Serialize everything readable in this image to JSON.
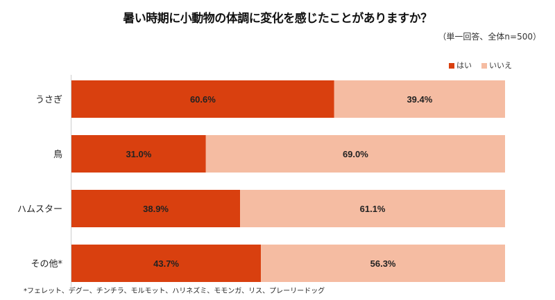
{
  "chart_data": {
    "type": "bar",
    "stacked": true,
    "orientation": "horizontal",
    "title": "暑い時期に小動物の体調に変化を感じたことがありますか？",
    "subtitle": "（単一回答、全体n=500）",
    "categories": [
      "うさぎ",
      "鳥",
      "ハムスター",
      "その他*"
    ],
    "series": [
      {
        "name": "はい",
        "color": "#d9400f",
        "values": [
          60.6,
          31.0,
          38.9,
          43.7
        ],
        "labels": [
          "60.6%",
          "31.0%",
          "38.9%",
          "43.7%"
        ]
      },
      {
        "name": "いいえ",
        "color": "#f5bca2",
        "values": [
          39.4,
          69.0,
          61.1,
          56.3
        ],
        "labels": [
          "39.4%",
          "69.0%",
          "61.1%",
          "56.3%"
        ]
      }
    ],
    "xlim": [
      0,
      100
    ],
    "legend_position": "top-right",
    "footnote": "*フェレット、デグー、チンチラ、モルモット、ハリネズミ、モモンガ、リス、プレーリードッグ"
  }
}
